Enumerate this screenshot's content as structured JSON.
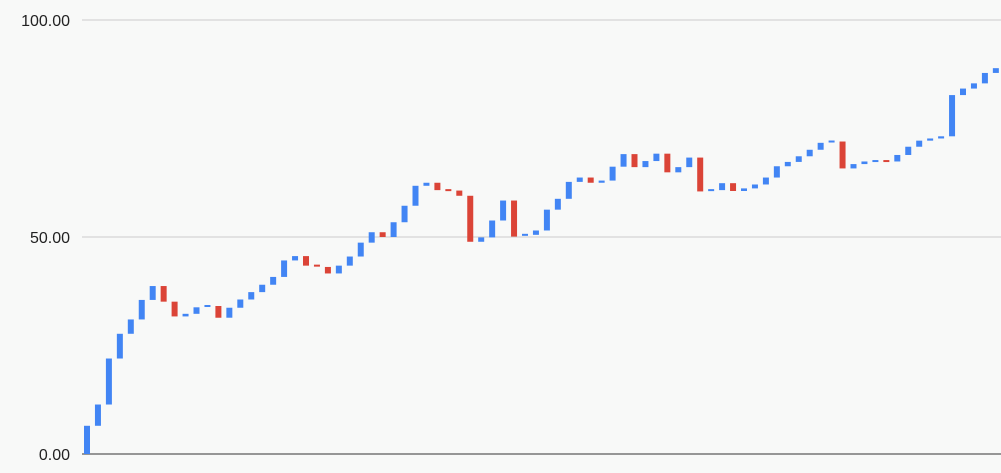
{
  "colors": {
    "increase": "#4285f4",
    "decrease": "#db4437",
    "background": "#f8f9f8",
    "grid": "#cccccc",
    "axis": "#333333"
  },
  "chart_data": {
    "type": "waterfall",
    "title": "",
    "xlabel": "",
    "ylabel": "",
    "ylim": [
      0,
      100
    ],
    "y_ticks": [
      "0.00",
      "50.00",
      "100.00"
    ],
    "grid": true,
    "legend": "none",
    "start_value": 0,
    "steps": [
      6.5,
      4.9,
      10.6,
      5.7,
      3.3,
      4.5,
      3.2,
      -3.6,
      -3.4,
      0.6,
      1.5,
      0.3,
      -2.7,
      2.3,
      1.9,
      1.7,
      1.7,
      1.8,
      3.8,
      1.0,
      -2.2,
      -0.3,
      -1.5,
      1.8,
      2.1,
      3.2,
      2.4,
      -1.1,
      3.4,
      3.8,
      4.6,
      0.7,
      -1.7,
      -0.1,
      -1.2,
      -10.6,
      1.0,
      3.9,
      4.6,
      -8.3,
      0.4,
      1.0,
      4.8,
      2.5,
      3.9,
      1.0,
      -1.2,
      0.5,
      3.2,
      2.9,
      -3.0,
      1.4,
      1.7,
      -4.3,
      1.2,
      2.2,
      -7.8,
      0.3,
      1.6,
      -1.8,
      0.6,
      0.9,
      1.6,
      2.6,
      1.0,
      1.3,
      1.5,
      1.6,
      0.3,
      -6.2,
      1.0,
      0.6,
      0.1,
      -0.1,
      1.5,
      1.9,
      1.4,
      0.5,
      0.5,
      9.5,
      1.5,
      1.2,
      2.4,
      1.1,
      4.4,
      0.4
    ]
  }
}
